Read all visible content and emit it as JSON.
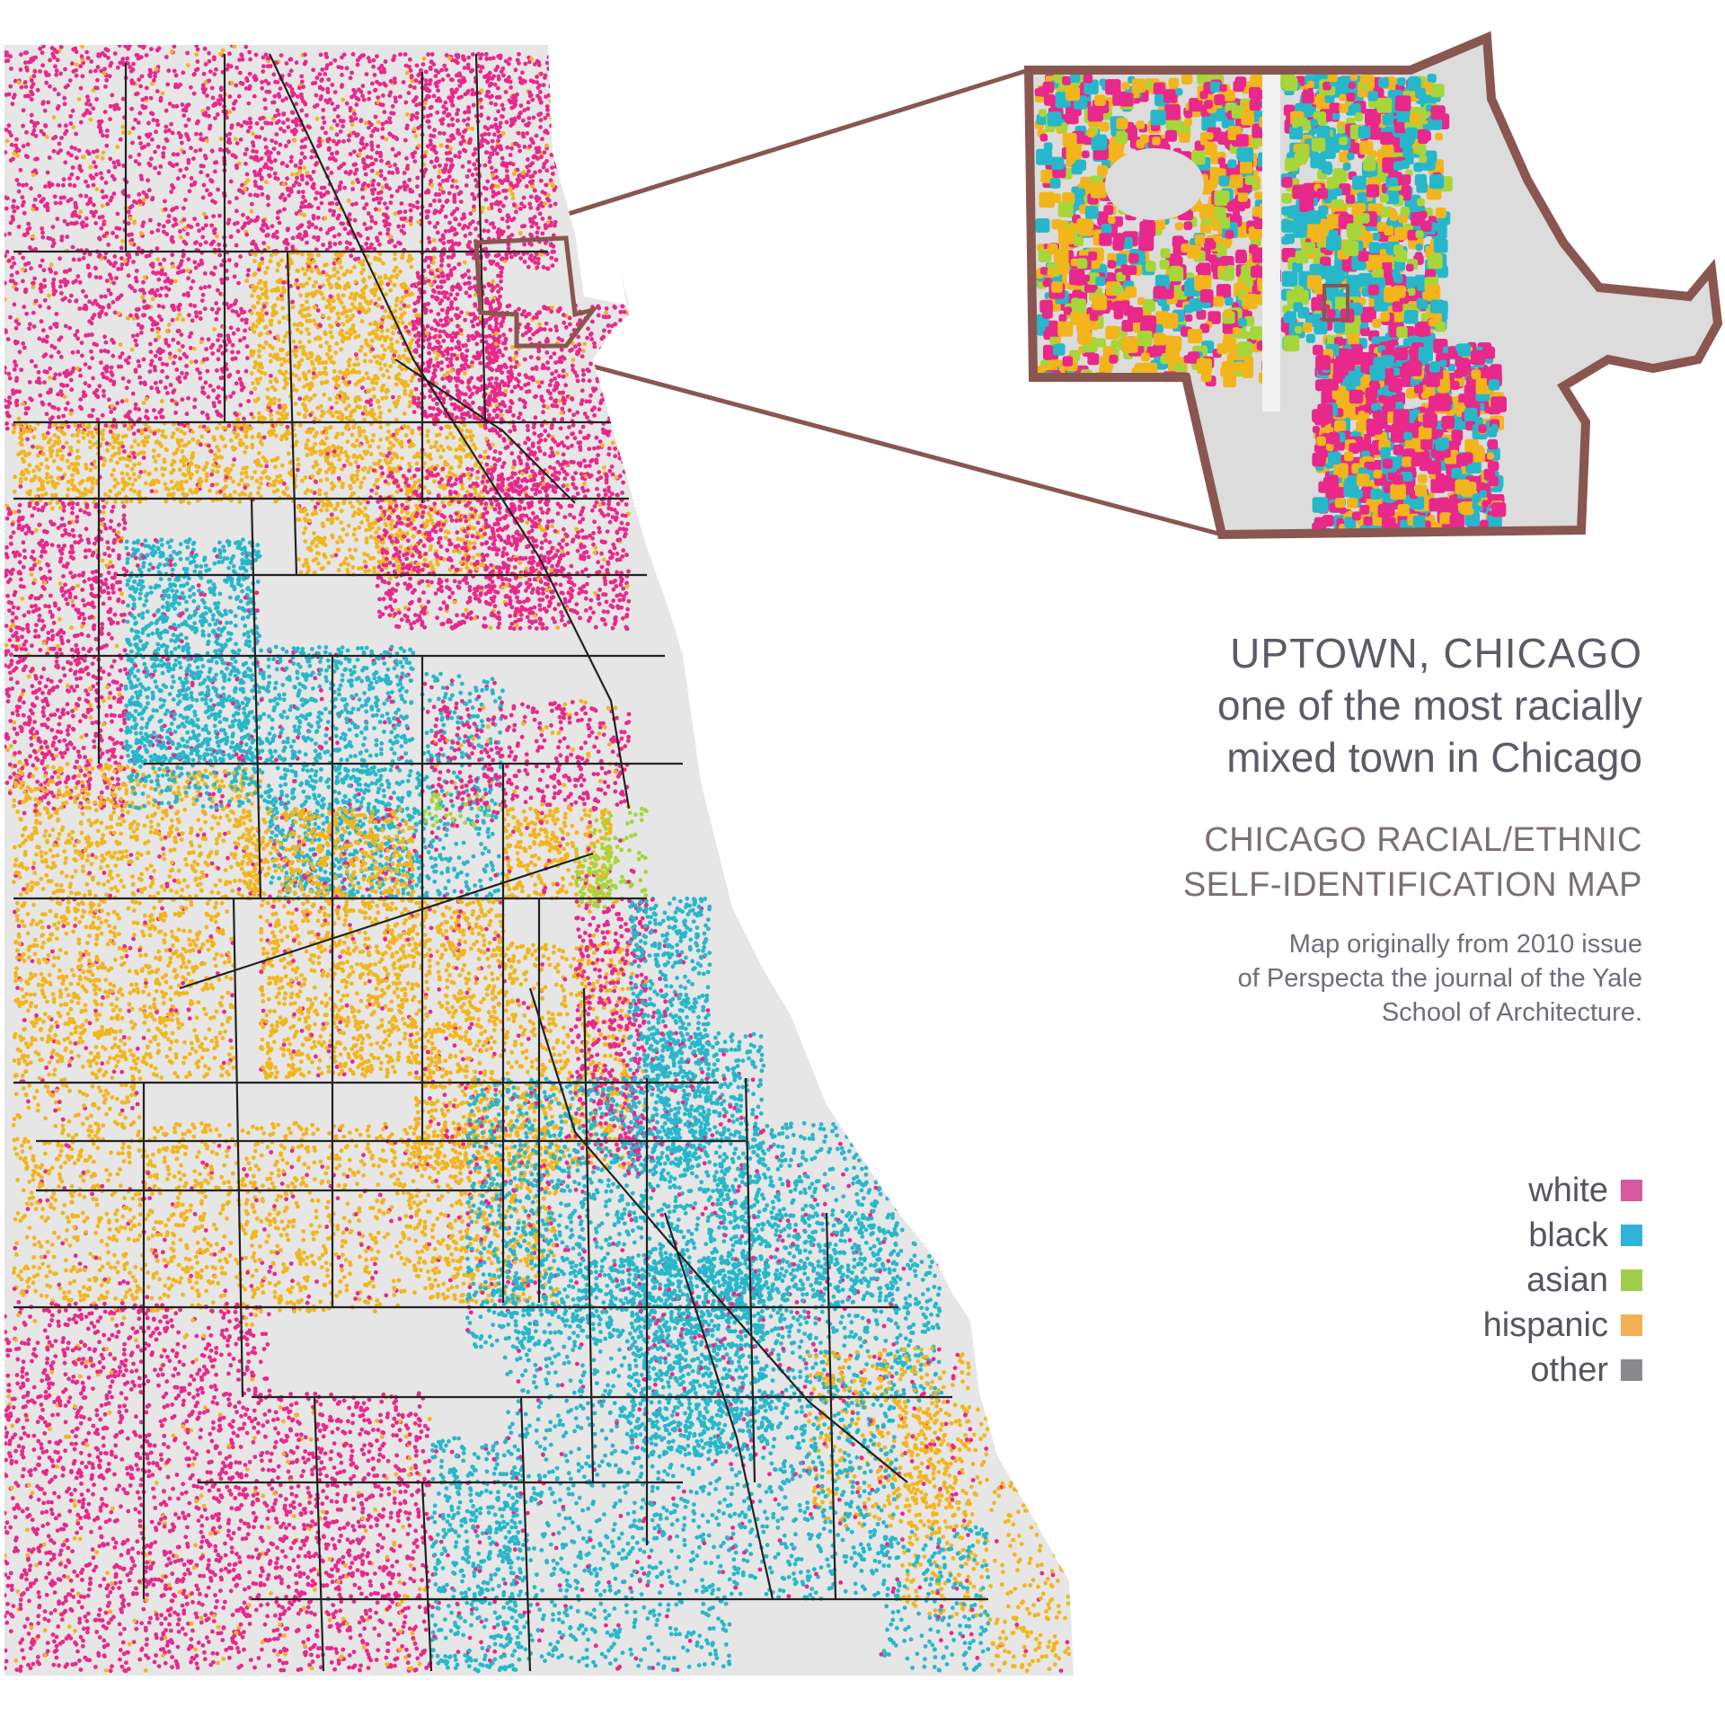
{
  "title": {
    "line1": "UPTOWN, CHICAGO",
    "line2": "one of the most racially",
    "line3": "mixed town in Chicago"
  },
  "subtitle": {
    "line1": "CHICAGO RACIAL/ETHNIC",
    "line2": "SELF-IDENTIFICATION MAP"
  },
  "credit": {
    "line1": "Map originally from 2010 issue",
    "line2": "of Perspecta the journal of the Yale",
    "line3": "School of Architecture."
  },
  "legend": [
    {
      "label": "white",
      "color": "#d6589f"
    },
    {
      "label": "black",
      "color": "#2fb3d8"
    },
    {
      "label": "asian",
      "color": "#9fcc4b"
    },
    {
      "label": "hispanic",
      "color": "#f5b056"
    },
    {
      "label": "other",
      "color": "#8a8a8e"
    }
  ],
  "colors": {
    "dot_white": "#e8288a",
    "dot_black": "#27b7cb",
    "dot_asian": "#a6d63a",
    "dot_hispanic": "#f2b51c",
    "callout_stroke": "#8a5650",
    "land": "#e4e4e4",
    "boundary": "#222222"
  }
}
